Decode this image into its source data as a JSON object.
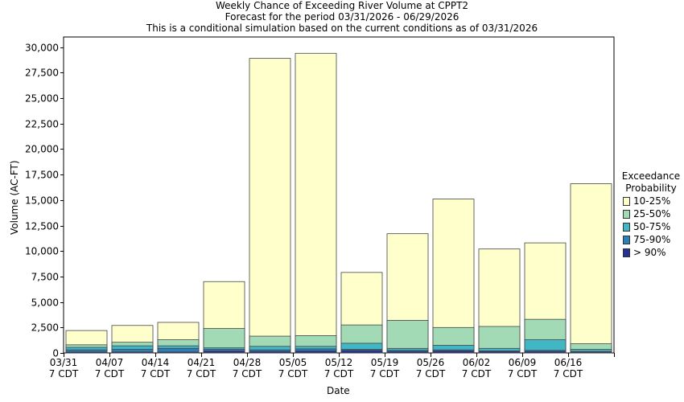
{
  "title_lines": [
    "Weekly Chance of Exceeding River Volume at CPPT2",
    "Forecast for the period 03/31/2026 - 06/29/2026",
    "This is a conditional simulation based on the current conditions as of 03/31/2026"
  ],
  "legend": {
    "title_line1": "Exceedance",
    "title_line2": "Probability"
  },
  "chart_data": {
    "type": "bar",
    "stacked": true,
    "title": "Weekly Chance of Exceeding River Volume at CPPT2",
    "xlabel": "Date",
    "ylabel": "Volume (AC-FT)",
    "ylim": [
      0,
      31000
    ],
    "yticks": [
      0,
      2500,
      5000,
      7500,
      10000,
      12500,
      15000,
      17500,
      20000,
      22500,
      25000,
      27500,
      30000
    ],
    "ytick_labels": [
      "0",
      "2,500",
      "5,000",
      "7,500",
      "10,000",
      "12,500",
      "15,000",
      "17,500",
      "20,000",
      "22,500",
      "25,000",
      "27,500",
      "30,000"
    ],
    "x_tick_labels": [
      [
        "03/31",
        "7 CDT"
      ],
      [
        "04/07",
        "7 CDT"
      ],
      [
        "04/14",
        "7 CDT"
      ],
      [
        "04/21",
        "7 CDT"
      ],
      [
        "04/28",
        "7 CDT"
      ],
      [
        "05/05",
        "7 CDT"
      ],
      [
        "05/12",
        "7 CDT"
      ],
      [
        "05/19",
        "7 CDT"
      ],
      [
        "05/26",
        "7 CDT"
      ],
      [
        "06/02",
        "7 CDT"
      ],
      [
        "06/09",
        "7 CDT"
      ],
      [
        "06/16",
        "7 CDT"
      ]
    ],
    "series": [
      {
        "name": "10-25%",
        "color": "#ffffcc",
        "values": [
          2200,
          2700,
          3000,
          7000,
          28900,
          29400,
          7900,
          11700,
          15100,
          10200,
          10800,
          16600
        ]
      },
      {
        "name": "25-50%",
        "color": "#a1dab4",
        "values": [
          800,
          1050,
          1300,
          2400,
          1650,
          1700,
          2750,
          3200,
          2500,
          2600,
          3300,
          900
        ]
      },
      {
        "name": "50-75%",
        "color": "#41b6c4",
        "values": [
          550,
          700,
          700,
          500,
          650,
          650,
          950,
          450,
          750,
          450,
          1300,
          350
        ]
      },
      {
        "name": "75-90%",
        "color": "#2c7fb8",
        "values": [
          300,
          350,
          450,
          350,
          300,
          400,
          350,
          250,
          300,
          200,
          250,
          150
        ]
      },
      {
        "name": "> 90%",
        "color": "#253494",
        "values": [
          100,
          100,
          100,
          200,
          150,
          200,
          250,
          150,
          200,
          150,
          150,
          80
        ]
      }
    ]
  }
}
